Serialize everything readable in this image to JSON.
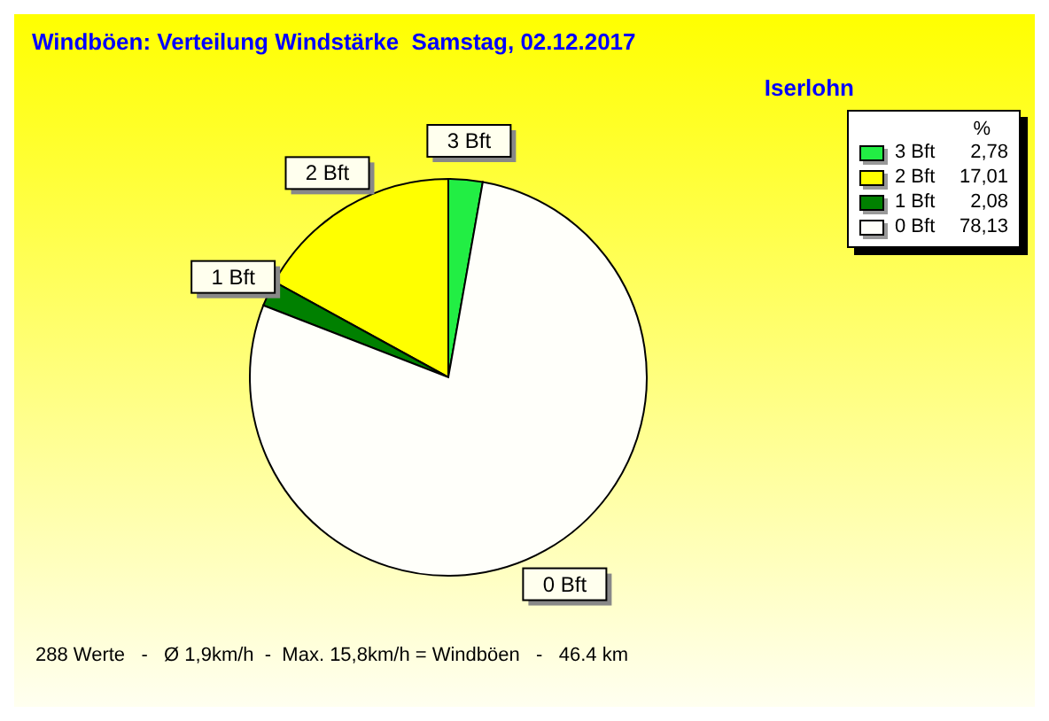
{
  "chart_data": {
    "type": "pie",
    "title": "Windböen: Verteilung Windstärke  Samstag, 02.12.2017",
    "subtitle": "Iserlohn",
    "legend_title": "%",
    "categories": [
      "3 Bft",
      "2 Bft",
      "1 Bft",
      "0 Bft"
    ],
    "values": [
      2.78,
      17.01,
      2.08,
      78.13
    ],
    "colors": [
      "#22ee44",
      "#ffff00",
      "#008000",
      "#fffffa"
    ],
    "value_labels": [
      "2,78",
      "17,01",
      "2,08",
      "78,13"
    ],
    "legend": "top right",
    "annotations": [
      "288 Werte   -   Ø 1,9km/h  -  Max. 15,8km/h = Windböen   -   46.4 km"
    ]
  }
}
